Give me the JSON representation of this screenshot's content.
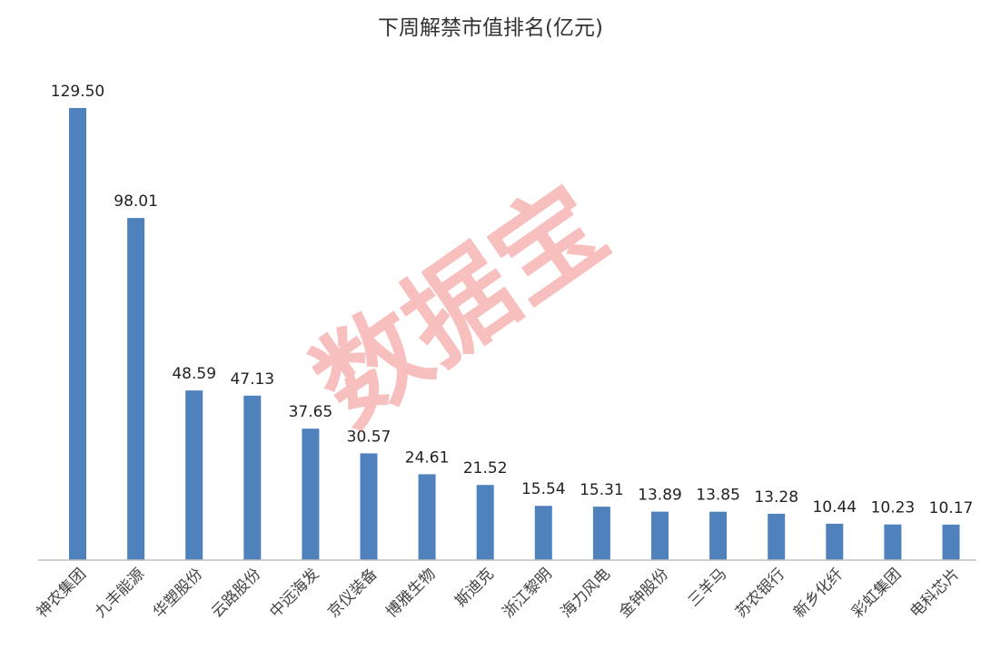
{
  "chart_data": {
    "type": "bar",
    "title": "下周解禁市值排名(亿元)",
    "categories": [
      "神农集团",
      "九丰能源",
      "华塑股份",
      "云路股份",
      "中远海发",
      "京仪装备",
      "博雅生物",
      "斯迪克",
      "浙江黎明",
      "海力风电",
      "金钟股份",
      "三羊马",
      "苏农银行",
      "新乡化纤",
      "彩虹集团",
      "电科芯片"
    ],
    "values": [
      129.5,
      98.01,
      48.59,
      47.13,
      37.65,
      30.57,
      24.61,
      21.52,
      15.54,
      15.31,
      13.89,
      13.85,
      13.28,
      10.44,
      10.23,
      10.17
    ],
    "value_labels": [
      "129.50",
      "98.01",
      "48.59",
      "47.13",
      "37.65",
      "30.57",
      "24.61",
      "21.52",
      "15.54",
      "15.31",
      "13.89",
      "13.85",
      "13.28",
      "10.44",
      "10.23",
      "10.17"
    ],
    "xlabel": "",
    "ylabel": "",
    "ylim": [
      0,
      129.5
    ],
    "grid": false,
    "bar_color": "#4f81bd",
    "axis_color": "#bfbfbf"
  },
  "watermark": {
    "text": "数据宝",
    "color": "#f07070"
  }
}
